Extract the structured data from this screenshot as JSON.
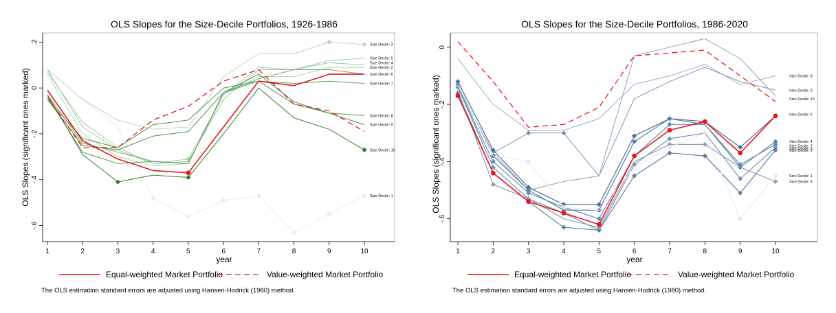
{
  "figure": {
    "legend_items": [
      "Equal-weighted Market Portfolio",
      "Value-weighted Market Portfolio"
    ],
    "note": "The OLS estimation standard errors are adjusted using Hansen-Hodrick (1980) method.",
    "colors": {
      "equal_weighted": "#e8161b",
      "value_weighted": "#e8161b",
      "left_deciles": "#3f8f3f",
      "right_deciles": "#4a6f94"
    }
  },
  "chart_data": [
    {
      "type": "line",
      "title": "OLS Slopes for the Size-Decile Portfolios, 1926-1986",
      "xlabel": "year",
      "ylabel": "OLS Slopes (significant ones marked)",
      "xlim": [
        1,
        10
      ],
      "ylim": [
        -0.67,
        0.24
      ],
      "x": [
        1,
        2,
        3,
        4,
        5,
        6,
        7,
        8,
        9,
        10
      ],
      "xticks": [
        "1",
        "2",
        "3",
        "4",
        "5",
        "6",
        "7",
        "8",
        "9",
        "10"
      ],
      "yticks": [
        0.2,
        0,
        -0.2,
        -0.4,
        -0.6
      ],
      "yticklabels": [
        ".2",
        "0",
        "-.2",
        "-.4",
        "-.6"
      ],
      "grid": false,
      "legend_position": "bottom",
      "series": [
        {
          "name": "Size Decile: 1",
          "values": [
            0.08,
            -0.05,
            -0.17,
            -0.48,
            -0.56,
            -0.49,
            -0.47,
            -0.63,
            -0.55,
            -0.47
          ],
          "color": "#e6eee6",
          "width": 1,
          "markers": [
            4,
            5,
            6,
            7,
            8,
            9,
            10
          ]
        },
        {
          "name": "Size Decile: 3",
          "values": [
            0.08,
            -0.05,
            -0.14,
            -0.18,
            -0.17,
            0.05,
            0.15,
            0.15,
            0.2,
            0.19
          ],
          "color": "#bcd8bc",
          "width": 1,
          "markers": [
            9,
            10
          ]
        },
        {
          "name": "Size Decile: 5",
          "values": [
            0.07,
            -0.15,
            -0.26,
            -0.33,
            -0.31,
            -0.03,
            0.09,
            0.08,
            0.12,
            0.13
          ],
          "color": "#a8cca8",
          "width": 1,
          "markers": [
            5
          ]
        },
        {
          "name": "Size Decile: 4",
          "values": [
            0.08,
            -0.17,
            -0.27,
            -0.33,
            -0.32,
            -0.05,
            0.08,
            0.08,
            0.11,
            0.1
          ],
          "color": "#9fc69f",
          "width": 1,
          "markers": []
        },
        {
          "name": "Size Decile: 2",
          "values": [
            0.06,
            -0.2,
            -0.3,
            -0.34,
            -0.33,
            -0.03,
            0.05,
            0.05,
            0.09,
            0.09
          ],
          "color": "#b5d4b5",
          "width": 1,
          "markers": []
        },
        {
          "name": "Size Decile: 6",
          "values": [
            -0.03,
            -0.24,
            -0.28,
            -0.32,
            -0.33,
            -0.02,
            0.04,
            0.08,
            0.08,
            0.06
          ],
          "color": "#6aaa6a",
          "width": 1,
          "markers": []
        },
        {
          "name": "Size Decile: 7",
          "values": [
            -0.04,
            -0.28,
            -0.33,
            -0.32,
            -0.33,
            -0.02,
            0.03,
            0.02,
            0.03,
            0.02
          ],
          "color": "#5a9e5a",
          "width": 1,
          "markers": []
        },
        {
          "name": "Size Decile: 8",
          "values": [
            -0.05,
            -0.22,
            -0.26,
            -0.16,
            -0.14,
            0.0,
            0.03,
            -0.07,
            -0.11,
            -0.12
          ],
          "color": "#4f964f",
          "width": 1,
          "markers": []
        },
        {
          "name": "Size Decile: 9",
          "values": [
            -0.05,
            -0.25,
            -0.27,
            -0.21,
            -0.19,
            -0.02,
            0.06,
            -0.06,
            -0.11,
            -0.16
          ],
          "color": "#449044",
          "width": 1,
          "markers": []
        },
        {
          "name": "Size Decile: 10",
          "values": [
            -0.03,
            -0.29,
            -0.41,
            -0.38,
            -0.39,
            -0.2,
            0.0,
            -0.13,
            -0.18,
            -0.27
          ],
          "color": "#2f7d2f",
          "width": 1,
          "markers": [
            3,
            5,
            10
          ]
        },
        {
          "name": "Equal-weighted Market Portfolio",
          "values": [
            -0.01,
            -0.23,
            -0.31,
            -0.36,
            -0.37,
            -0.17,
            0.03,
            0.01,
            0.06,
            0.06
          ],
          "color": "#e8161b",
          "width": 1.6,
          "dash": false,
          "markers": [
            5
          ]
        },
        {
          "name": "Value-weighted Market Portfolio",
          "values": [
            -0.04,
            -0.26,
            -0.26,
            -0.14,
            -0.08,
            0.03,
            0.08,
            -0.07,
            -0.1,
            -0.19
          ],
          "color": "#e8161b",
          "width": 1.3,
          "dash": true,
          "markers": []
        }
      ],
      "end_labels": [
        {
          "text": "Size Decile: 3",
          "y": 0.19
        },
        {
          "text": "Size Decile: 5",
          "y": 0.13
        },
        {
          "text": "Size Decile: 4",
          "y": 0.11
        },
        {
          "text": "Size Decile: 2",
          "y": 0.09
        },
        {
          "text": "Size Decile: 6",
          "y": 0.06
        },
        {
          "text": "Size Decile: 7",
          "y": 0.02
        },
        {
          "text": "Size Decile: 8",
          "y": -0.12
        },
        {
          "text": "Size Decile: 9",
          "y": -0.16
        },
        {
          "text": "Size Decile: 10",
          "y": -0.27
        },
        {
          "text": "Size Decile: 1",
          "y": -0.47
        }
      ]
    },
    {
      "type": "line",
      "title": "OLS Slopes for the Size-Decile Portfolios, 1986-2020",
      "xlabel": "year",
      "ylabel": "OLS Slopes (significant ones marked)",
      "xlim": [
        1,
        10
      ],
      "ylim": [
        -0.68,
        0.05
      ],
      "x": [
        1,
        2,
        3,
        4,
        5,
        6,
        7,
        8,
        9,
        10
      ],
      "xticks": [
        "1",
        "2",
        "3",
        "4",
        "5",
        "6",
        "7",
        "8",
        "9",
        "10"
      ],
      "yticks": [
        0,
        -0.2,
        -0.4,
        -0.6
      ],
      "yticklabels": [
        "0",
        "-.2",
        "-.4",
        "-.6"
      ],
      "grid": false,
      "legend_position": "bottom",
      "series": [
        {
          "name": "Size Decile: 8",
          "values": [
            -0.04,
            -0.2,
            -0.29,
            -0.29,
            -0.25,
            -0.13,
            -0.1,
            -0.06,
            -0.13,
            -0.1
          ],
          "color": "#9aafc4",
          "width": 1,
          "markers": []
        },
        {
          "name": "Size Decile: 9",
          "values": [
            -0.14,
            -0.37,
            -0.3,
            -0.3,
            -0.45,
            -0.18,
            -0.12,
            -0.07,
            -0.12,
            -0.15
          ],
          "color": "#7a94b0",
          "width": 1,
          "markers": [
            3,
            4
          ]
        },
        {
          "name": "Size Decile: 10",
          "values": [
            -0.14,
            -0.37,
            -0.5,
            -0.47,
            -0.45,
            -0.03,
            0.0,
            0.03,
            -0.04,
            -0.17
          ],
          "color": "#8aa2ba",
          "width": 1,
          "markers": []
        },
        {
          "name": "Size Decile: 6",
          "values": [
            -0.12,
            -0.36,
            -0.49,
            -0.55,
            -0.55,
            -0.31,
            -0.25,
            -0.26,
            -0.35,
            -0.24
          ],
          "color": "#4a6f94",
          "width": 1.2,
          "markers": [
            1,
            2,
            3,
            4,
            5,
            6,
            7,
            9
          ]
        },
        {
          "name": "Size Decile: 4",
          "values": [
            -0.13,
            -0.38,
            -0.5,
            -0.57,
            -0.57,
            -0.33,
            -0.25,
            -0.27,
            -0.42,
            -0.33
          ],
          "color": "#5b7fa3",
          "width": 1.2,
          "markers": [
            1,
            2,
            3,
            4,
            5,
            6,
            7,
            9,
            10
          ]
        },
        {
          "name": "Size Decile: 3",
          "values": [
            -0.14,
            -0.4,
            -0.51,
            -0.56,
            -0.6,
            -0.38,
            -0.27,
            -0.27,
            -0.41,
            -0.34
          ],
          "color": "#6a8aac",
          "width": 1.2,
          "markers": [
            1,
            2,
            3,
            4,
            5,
            6,
            7,
            9,
            10
          ]
        },
        {
          "name": "Size Decile: 2",
          "values": [
            -0.14,
            -0.42,
            -0.53,
            -0.58,
            -0.64,
            -0.41,
            -0.32,
            -0.3,
            -0.46,
            -0.35
          ],
          "color": "#7a94b0",
          "width": 1.2,
          "markers": [
            1,
            2,
            3,
            4,
            5,
            6,
            7,
            8,
            9,
            10
          ]
        },
        {
          "name": "Size Decile: 7",
          "values": [
            -0.16,
            -0.44,
            -0.54,
            -0.63,
            -0.64,
            -0.45,
            -0.37,
            -0.38,
            -0.51,
            -0.36
          ],
          "color": "#5b7fa3",
          "width": 1.2,
          "markers": [
            1,
            2,
            3,
            4,
            5,
            6,
            7,
            8,
            9,
            10
          ]
        },
        {
          "name": "Size Decile: 5",
          "values": [
            -0.15,
            -0.48,
            -0.53,
            -0.6,
            -0.63,
            -0.4,
            -0.34,
            -0.34,
            -0.42,
            -0.47
          ],
          "color": "#8aa2ba",
          "width": 1.2,
          "markers": [
            2,
            3,
            5,
            7,
            8,
            10
          ]
        },
        {
          "name": "Size Decile: 1",
          "values": [
            -0.13,
            -0.38,
            -0.4,
            -0.56,
            -0.57,
            -0.42,
            -0.35,
            -0.3,
            -0.6,
            -0.45
          ],
          "color": "#e4e9ef",
          "width": 1,
          "markers": [
            3,
            4,
            7,
            8,
            9,
            10
          ]
        },
        {
          "name": "Equal-weighted Market Portfolio",
          "values": [
            -0.17,
            -0.44,
            -0.54,
            -0.58,
            -0.62,
            -0.38,
            -0.29,
            -0.26,
            -0.37,
            -0.24
          ],
          "color": "#e8161b",
          "width": 1.6,
          "dash": false,
          "markers": [
            1,
            2,
            3,
            4,
            5,
            6,
            7,
            8,
            9,
            10
          ]
        },
        {
          "name": "Value-weighted Market Portfolio",
          "values": [
            0.02,
            -0.12,
            -0.28,
            -0.27,
            -0.21,
            -0.03,
            -0.02,
            -0.01,
            -0.1,
            -0.19
          ],
          "color": "#e8161b",
          "width": 1.3,
          "dash": true,
          "markers": []
        }
      ],
      "end_labels": [
        {
          "text": "Size Decile: 8",
          "y": -0.1
        },
        {
          "text": "Size Decile: 9",
          "y": -0.15
        },
        {
          "text": "Size Decile: 10",
          "y": -0.18
        },
        {
          "text": "Size Decile: 6",
          "y": -0.235
        },
        {
          "text": "Size Decile: 4",
          "y": -0.33
        },
        {
          "text": "Size Decile: 7",
          "y": -0.345
        },
        {
          "text": "Size Decile: 3",
          "y": -0.353
        },
        {
          "text": "Size Decile: 2",
          "y": -0.361
        },
        {
          "text": "Size Decile: 1",
          "y": -0.45
        },
        {
          "text": "Size Decile: 5",
          "y": -0.47
        }
      ]
    }
  ]
}
